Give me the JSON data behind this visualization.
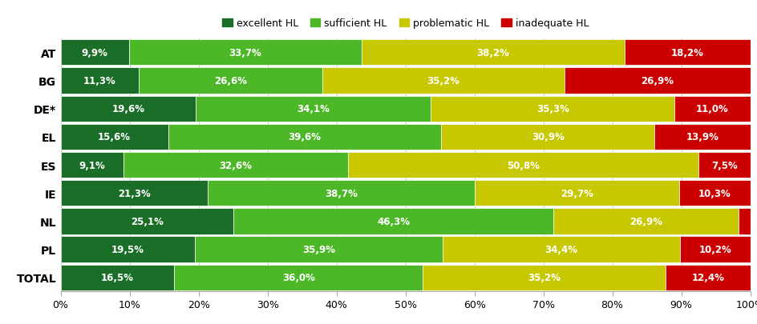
{
  "categories": [
    "AT",
    "BG",
    "DE*",
    "EL",
    "ES",
    "IE",
    "NL",
    "PL",
    "TOTAL"
  ],
  "series": {
    "excellent HL": [
      9.9,
      11.3,
      19.6,
      15.6,
      9.1,
      21.3,
      25.1,
      19.5,
      16.5
    ],
    "sufficient HL": [
      33.7,
      26.6,
      34.1,
      39.6,
      32.6,
      38.7,
      46.3,
      35.9,
      36.0
    ],
    "problematic HL": [
      38.2,
      35.2,
      35.3,
      30.9,
      50.8,
      29.7,
      26.9,
      34.4,
      35.2
    ],
    "inadequate HL": [
      18.2,
      26.9,
      11.0,
      13.9,
      7.5,
      10.3,
      1.8,
      10.2,
      12.4
    ]
  },
  "colors": {
    "excellent HL": "#1a6e28",
    "sufficient HL": "#4cb828",
    "problematic HL": "#c8c800",
    "inadequate HL": "#cc0000"
  },
  "legend_order": [
    "excellent HL",
    "sufficient HL",
    "problematic HL",
    "inadequate HL"
  ],
  "background_color": "#ffffff",
  "text_color": "#ffffff",
  "xticks": [
    0,
    10,
    20,
    30,
    40,
    50,
    60,
    70,
    80,
    90,
    100
  ],
  "xtick_labels": [
    "0%",
    "10%",
    "20%",
    "30%",
    "40%",
    "50%",
    "60%",
    "70%",
    "80%",
    "90%",
    "100%"
  ]
}
